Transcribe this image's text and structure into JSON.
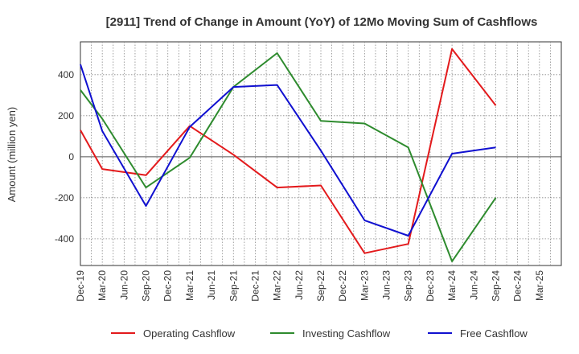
{
  "chart_data": {
    "type": "line",
    "title": "[2911]  Trend of Change in Amount (YoY) of 12Mo Moving Sum of Cashflows",
    "xlabel": "",
    "ylabel": "Amount (million yen)",
    "categories": [
      "Dec-19",
      "Mar-20",
      "Jun-20",
      "Sep-20",
      "Dec-20",
      "Mar-21",
      "Jun-21",
      "Sep-21",
      "Dec-21",
      "Mar-22",
      "Jun-22",
      "Sep-22",
      "Dec-22",
      "Mar-23",
      "Jun-23",
      "Sep-23",
      "Dec-23",
      "Mar-24",
      "Jun-24",
      "Sep-24",
      "Dec-24",
      "Mar-25"
    ],
    "yticks": [
      -400,
      -200,
      0,
      200,
      400
    ],
    "ylim": [
      -530,
      560
    ],
    "grid": true,
    "legend_position": "bottom",
    "series": [
      {
        "name": "Operating Cashflow",
        "color": "#e31a1c",
        "values": [
          130,
          -60,
          null,
          -90,
          null,
          150,
          null,
          10,
          null,
          -150,
          null,
          -140,
          null,
          -470,
          null,
          -425,
          null,
          525,
          null,
          250,
          null,
          null
        ]
      },
      {
        "name": "Investing Cashflow",
        "color": "#2e8b2e",
        "values": [
          325,
          185,
          null,
          -150,
          null,
          -5,
          null,
          340,
          null,
          505,
          null,
          175,
          null,
          162,
          null,
          45,
          null,
          -510,
          null,
          -200,
          null,
          null
        ]
      },
      {
        "name": "Free Cashflow",
        "color": "#1010d0",
        "values": [
          450,
          125,
          null,
          -240,
          null,
          145,
          null,
          340,
          null,
          350,
          null,
          30,
          null,
          -310,
          null,
          -385,
          null,
          15,
          null,
          45,
          null,
          null
        ]
      }
    ]
  }
}
